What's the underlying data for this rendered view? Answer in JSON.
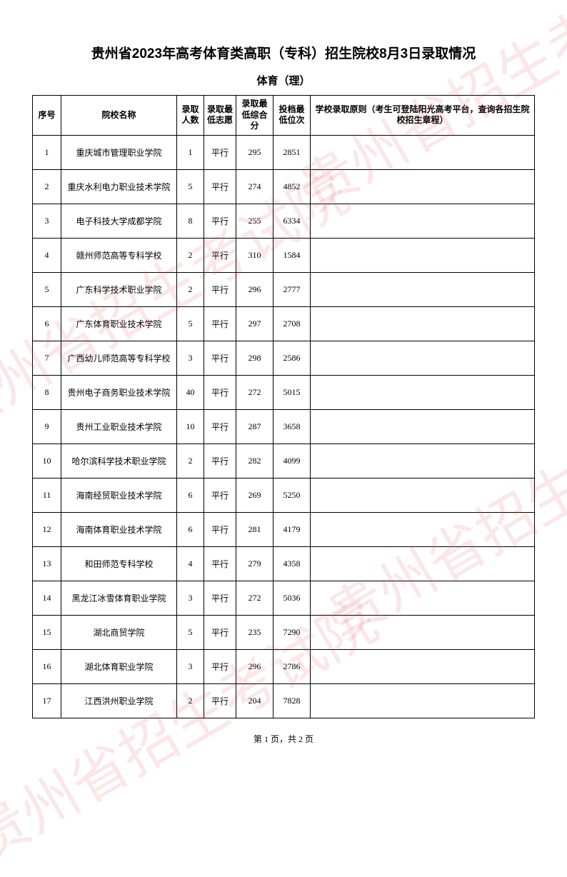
{
  "title": "贵州省2023年高考体育类高职（专科）招生院校8月3日录取情况",
  "subtitle": "体育（理）",
  "watermark_text": "贵州省招生考试院",
  "table": {
    "columns": [
      "序号",
      "院校名称",
      "录取人数",
      "录取最低志愿",
      "录取最低综合分",
      "投档最低位次",
      "学校录取原则（考生可登陆阳光高考平台，查询各招生院校招生章程）"
    ],
    "rows": [
      [
        "1",
        "重庆城市管理职业学院",
        "1",
        "平行",
        "295",
        "2851",
        ""
      ],
      [
        "2",
        "重庆水利电力职业技术学院",
        "5",
        "平行",
        "274",
        "4852",
        ""
      ],
      [
        "3",
        "电子科技大学成都学院",
        "8",
        "平行",
        "255",
        "6334",
        ""
      ],
      [
        "4",
        "赣州师范高等专科学校",
        "2",
        "平行",
        "310",
        "1584",
        ""
      ],
      [
        "5",
        "广东科学技术职业学院",
        "2",
        "平行",
        "296",
        "2777",
        ""
      ],
      [
        "6",
        "广东体育职业技术学院",
        "5",
        "平行",
        "297",
        "2708",
        ""
      ],
      [
        "7",
        "广西幼儿师范高等专科学校",
        "3",
        "平行",
        "298",
        "2586",
        ""
      ],
      [
        "8",
        "贵州电子商务职业技术学院",
        "40",
        "平行",
        "272",
        "5015",
        ""
      ],
      [
        "9",
        "贵州工业职业技术学院",
        "10",
        "平行",
        "287",
        "3658",
        ""
      ],
      [
        "10",
        "哈尔滨科学技术职业学院",
        "2",
        "平行",
        "282",
        "4099",
        ""
      ],
      [
        "11",
        "海南经贸职业技术学院",
        "6",
        "平行",
        "269",
        "5250",
        ""
      ],
      [
        "12",
        "海南体育职业技术学院",
        "6",
        "平行",
        "281",
        "4179",
        ""
      ],
      [
        "13",
        "和田师范专科学校",
        "4",
        "平行",
        "279",
        "4358",
        ""
      ],
      [
        "14",
        "黑龙江冰雪体育职业学院",
        "3",
        "平行",
        "272",
        "5036",
        ""
      ],
      [
        "15",
        "湖北商贸学院",
        "5",
        "平行",
        "235",
        "7290",
        ""
      ],
      [
        "16",
        "湖北体育职业学院",
        "3",
        "平行",
        "296",
        "2786",
        ""
      ],
      [
        "17",
        "江西洪州职业学院",
        "2",
        "平行",
        "204",
        "7828",
        ""
      ]
    ]
  },
  "footer": "第 1 页，共 2 页",
  "colors": {
    "background": "#ffffff",
    "border": "#000000",
    "text": "#000000",
    "watermark": "rgba(220,60,60,0.12)"
  }
}
